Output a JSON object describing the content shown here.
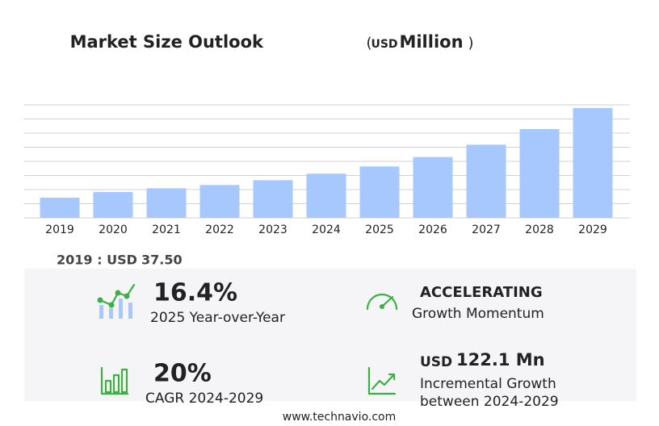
{
  "chart_data": {
    "type": "bar",
    "title": "Market Size Outlook",
    "unit_parts": [
      "(",
      "USD",
      "Million",
      ")"
    ],
    "categories": [
      "2019",
      "2020",
      "2021",
      "2022",
      "2023",
      "2024",
      "2025",
      "2026",
      "2027",
      "2028",
      "2029"
    ],
    "values": [
      37.5,
      48,
      55,
      61,
      70,
      82.1,
      95.5,
      113,
      136,
      165,
      204.2
    ],
    "color": "#a6c8ff",
    "ylim": [
      0,
      210
    ],
    "grid": true
  },
  "base": {
    "label": "2019 : USD",
    "value": "37.50"
  },
  "kpis": {
    "yoy": {
      "value": "16.4%",
      "label": "2025 Year-over-Year"
    },
    "momentum": {
      "value": "ACCELERATING",
      "label": "Growth Momentum"
    },
    "cagr": {
      "value": "20%",
      "label": "CAGR 2024-2029"
    },
    "increment": {
      "currency": "USD",
      "value": "122.1 Mn",
      "label": "Incremental Growth",
      "label2": "between 2024-2029"
    }
  },
  "footer": "www.technavio.com"
}
